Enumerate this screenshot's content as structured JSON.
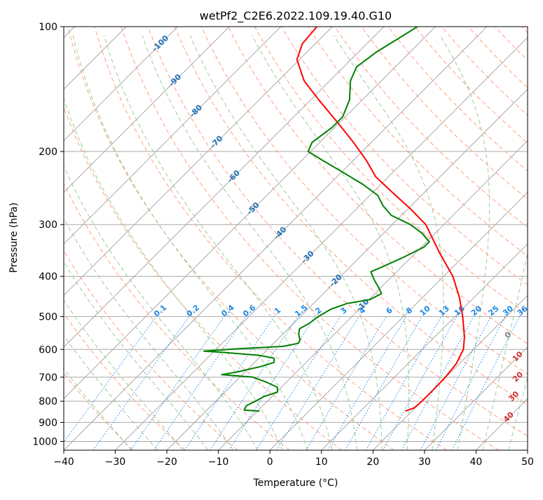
{
  "chart_data": {
    "type": "line",
    "subtype": "skew-T log-p diagram",
    "title": "wetPf2_C2E6.2022.109.19.40.G10",
    "xlabel": "Temperature (°C)",
    "ylabel": "Pressure (hPa)",
    "xlim": [
      -40,
      50
    ],
    "ylim": [
      1050,
      100
    ],
    "y_scale": "log",
    "grid": true,
    "x_ticks": [
      -40,
      -30,
      -20,
      -10,
      0,
      10,
      20,
      30,
      40,
      50
    ],
    "y_ticks": [
      1000,
      900,
      800,
      700,
      600,
      500,
      400,
      300,
      200,
      100
    ],
    "series": [
      {
        "role": "temperature",
        "color": "#ff0000",
        "points": [
          {
            "p": 845,
            "t": 18.7
          },
          {
            "p": 830,
            "t": 19.8
          },
          {
            "p": 800,
            "t": 20.0
          },
          {
            "p": 750,
            "t": 20.0
          },
          {
            "p": 700,
            "t": 19.9
          },
          {
            "p": 650,
            "t": 19.4
          },
          {
            "p": 600,
            "t": 18.0
          },
          {
            "p": 560,
            "t": 15.8
          },
          {
            "p": 500,
            "t": 11.5
          },
          {
            "p": 450,
            "t": 7.2
          },
          {
            "p": 400,
            "t": 1.8
          },
          {
            "p": 350,
            "t": -5.5
          },
          {
            "p": 300,
            "t": -13.5
          },
          {
            "p": 275,
            "t": -19.5
          },
          {
            "p": 250,
            "t": -26.5
          },
          {
            "p": 230,
            "t": -32.5
          },
          {
            "p": 210,
            "t": -37.5
          },
          {
            "p": 190,
            "t": -43.5
          },
          {
            "p": 170,
            "t": -50.5
          },
          {
            "p": 150,
            "t": -58.5
          },
          {
            "p": 135,
            "t": -65.0
          },
          {
            "p": 120,
            "t": -70.5
          },
          {
            "p": 110,
            "t": -72.5
          },
          {
            "p": 100,
            "t": -73.0
          }
        ]
      },
      {
        "role": "dewpoint",
        "color": "#008000",
        "points": [
          {
            "p": 845,
            "t": -9.6
          },
          {
            "p": 840,
            "t": -12.8
          },
          {
            "p": 820,
            "t": -13.2
          },
          {
            "p": 800,
            "t": -12.3
          },
          {
            "p": 780,
            "t": -11.6
          },
          {
            "p": 760,
            "t": -9.8
          },
          {
            "p": 740,
            "t": -10.8
          },
          {
            "p": 720,
            "t": -13.8
          },
          {
            "p": 700,
            "t": -17.5
          },
          {
            "p": 690,
            "t": -24.0
          },
          {
            "p": 680,
            "t": -21.5
          },
          {
            "p": 660,
            "t": -18.0
          },
          {
            "p": 645,
            "t": -16.2
          },
          {
            "p": 630,
            "t": -17.0
          },
          {
            "p": 620,
            "t": -20.5
          },
          {
            "p": 610,
            "t": -28.0
          },
          {
            "p": 606,
            "t": -32.0
          },
          {
            "p": 598,
            "t": -26.0
          },
          {
            "p": 590,
            "t": -17.5
          },
          {
            "p": 580,
            "t": -15.2
          },
          {
            "p": 570,
            "t": -15.5
          },
          {
            "p": 550,
            "t": -17.0
          },
          {
            "p": 535,
            "t": -17.8
          },
          {
            "p": 520,
            "t": -17.0
          },
          {
            "p": 500,
            "t": -16.5
          },
          {
            "p": 480,
            "t": -15.5
          },
          {
            "p": 465,
            "t": -13.5
          },
          {
            "p": 455,
            "t": -9.8
          },
          {
            "p": 440,
            "t": -8.7
          },
          {
            "p": 425,
            "t": -10.5
          },
          {
            "p": 410,
            "t": -12.5
          },
          {
            "p": 398,
            "t": -14.0
          },
          {
            "p": 390,
            "t": -15.0
          },
          {
            "p": 380,
            "t": -13.8
          },
          {
            "p": 360,
            "t": -11.5
          },
          {
            "p": 340,
            "t": -9.5
          },
          {
            "p": 330,
            "t": -9.5
          },
          {
            "p": 315,
            "t": -12.5
          },
          {
            "p": 300,
            "t": -16.5
          },
          {
            "p": 285,
            "t": -22.0
          },
          {
            "p": 270,
            "t": -25.5
          },
          {
            "p": 255,
            "t": -28.5
          },
          {
            "p": 240,
            "t": -33.5
          },
          {
            "p": 225,
            "t": -39.5
          },
          {
            "p": 210,
            "t": -46.0
          },
          {
            "p": 200,
            "t": -50.5
          },
          {
            "p": 190,
            "t": -51.5
          },
          {
            "p": 175,
            "t": -50.5
          },
          {
            "p": 165,
            "t": -50.5
          },
          {
            "p": 150,
            "t": -52.5
          },
          {
            "p": 135,
            "t": -56.0
          },
          {
            "p": 125,
            "t": -57.5
          },
          {
            "p": 115,
            "t": -56.5
          },
          {
            "p": 105,
            "t": -54.5
          },
          {
            "p": 100,
            "t": -53.5
          }
        ]
      }
    ],
    "dry_adiabat_labels": [
      "-100",
      "-90",
      "-80",
      "-70",
      "-60",
      "-50",
      "-40",
      "-30",
      "-20",
      "-10"
    ],
    "mixing_ratio_labels": [
      "0.1",
      "0.2",
      "0.4",
      "0.6",
      "1",
      "1.5",
      "2",
      "3",
      "4",
      "6",
      "8",
      "10",
      "13",
      "16",
      "20",
      "25",
      "30",
      "36"
    ],
    "moist_adiabat_labels": [
      "0",
      "10",
      "20",
      "30",
      "40"
    ],
    "colors": {
      "temperature": "#ff0000",
      "dewpoint": "#008000",
      "isotherm": "#a9a9a9",
      "isobar": "#a9a9a9",
      "dry_adiabat": "#ff9f80",
      "moist_adiabat": "#99cc99",
      "mixing_ratio": "#1e88e5",
      "dry_adiabat_label": "#1f6fb4",
      "moist_adiabat_label": "#d32f2f",
      "mixing_ratio_label": "#1e88e5"
    }
  }
}
